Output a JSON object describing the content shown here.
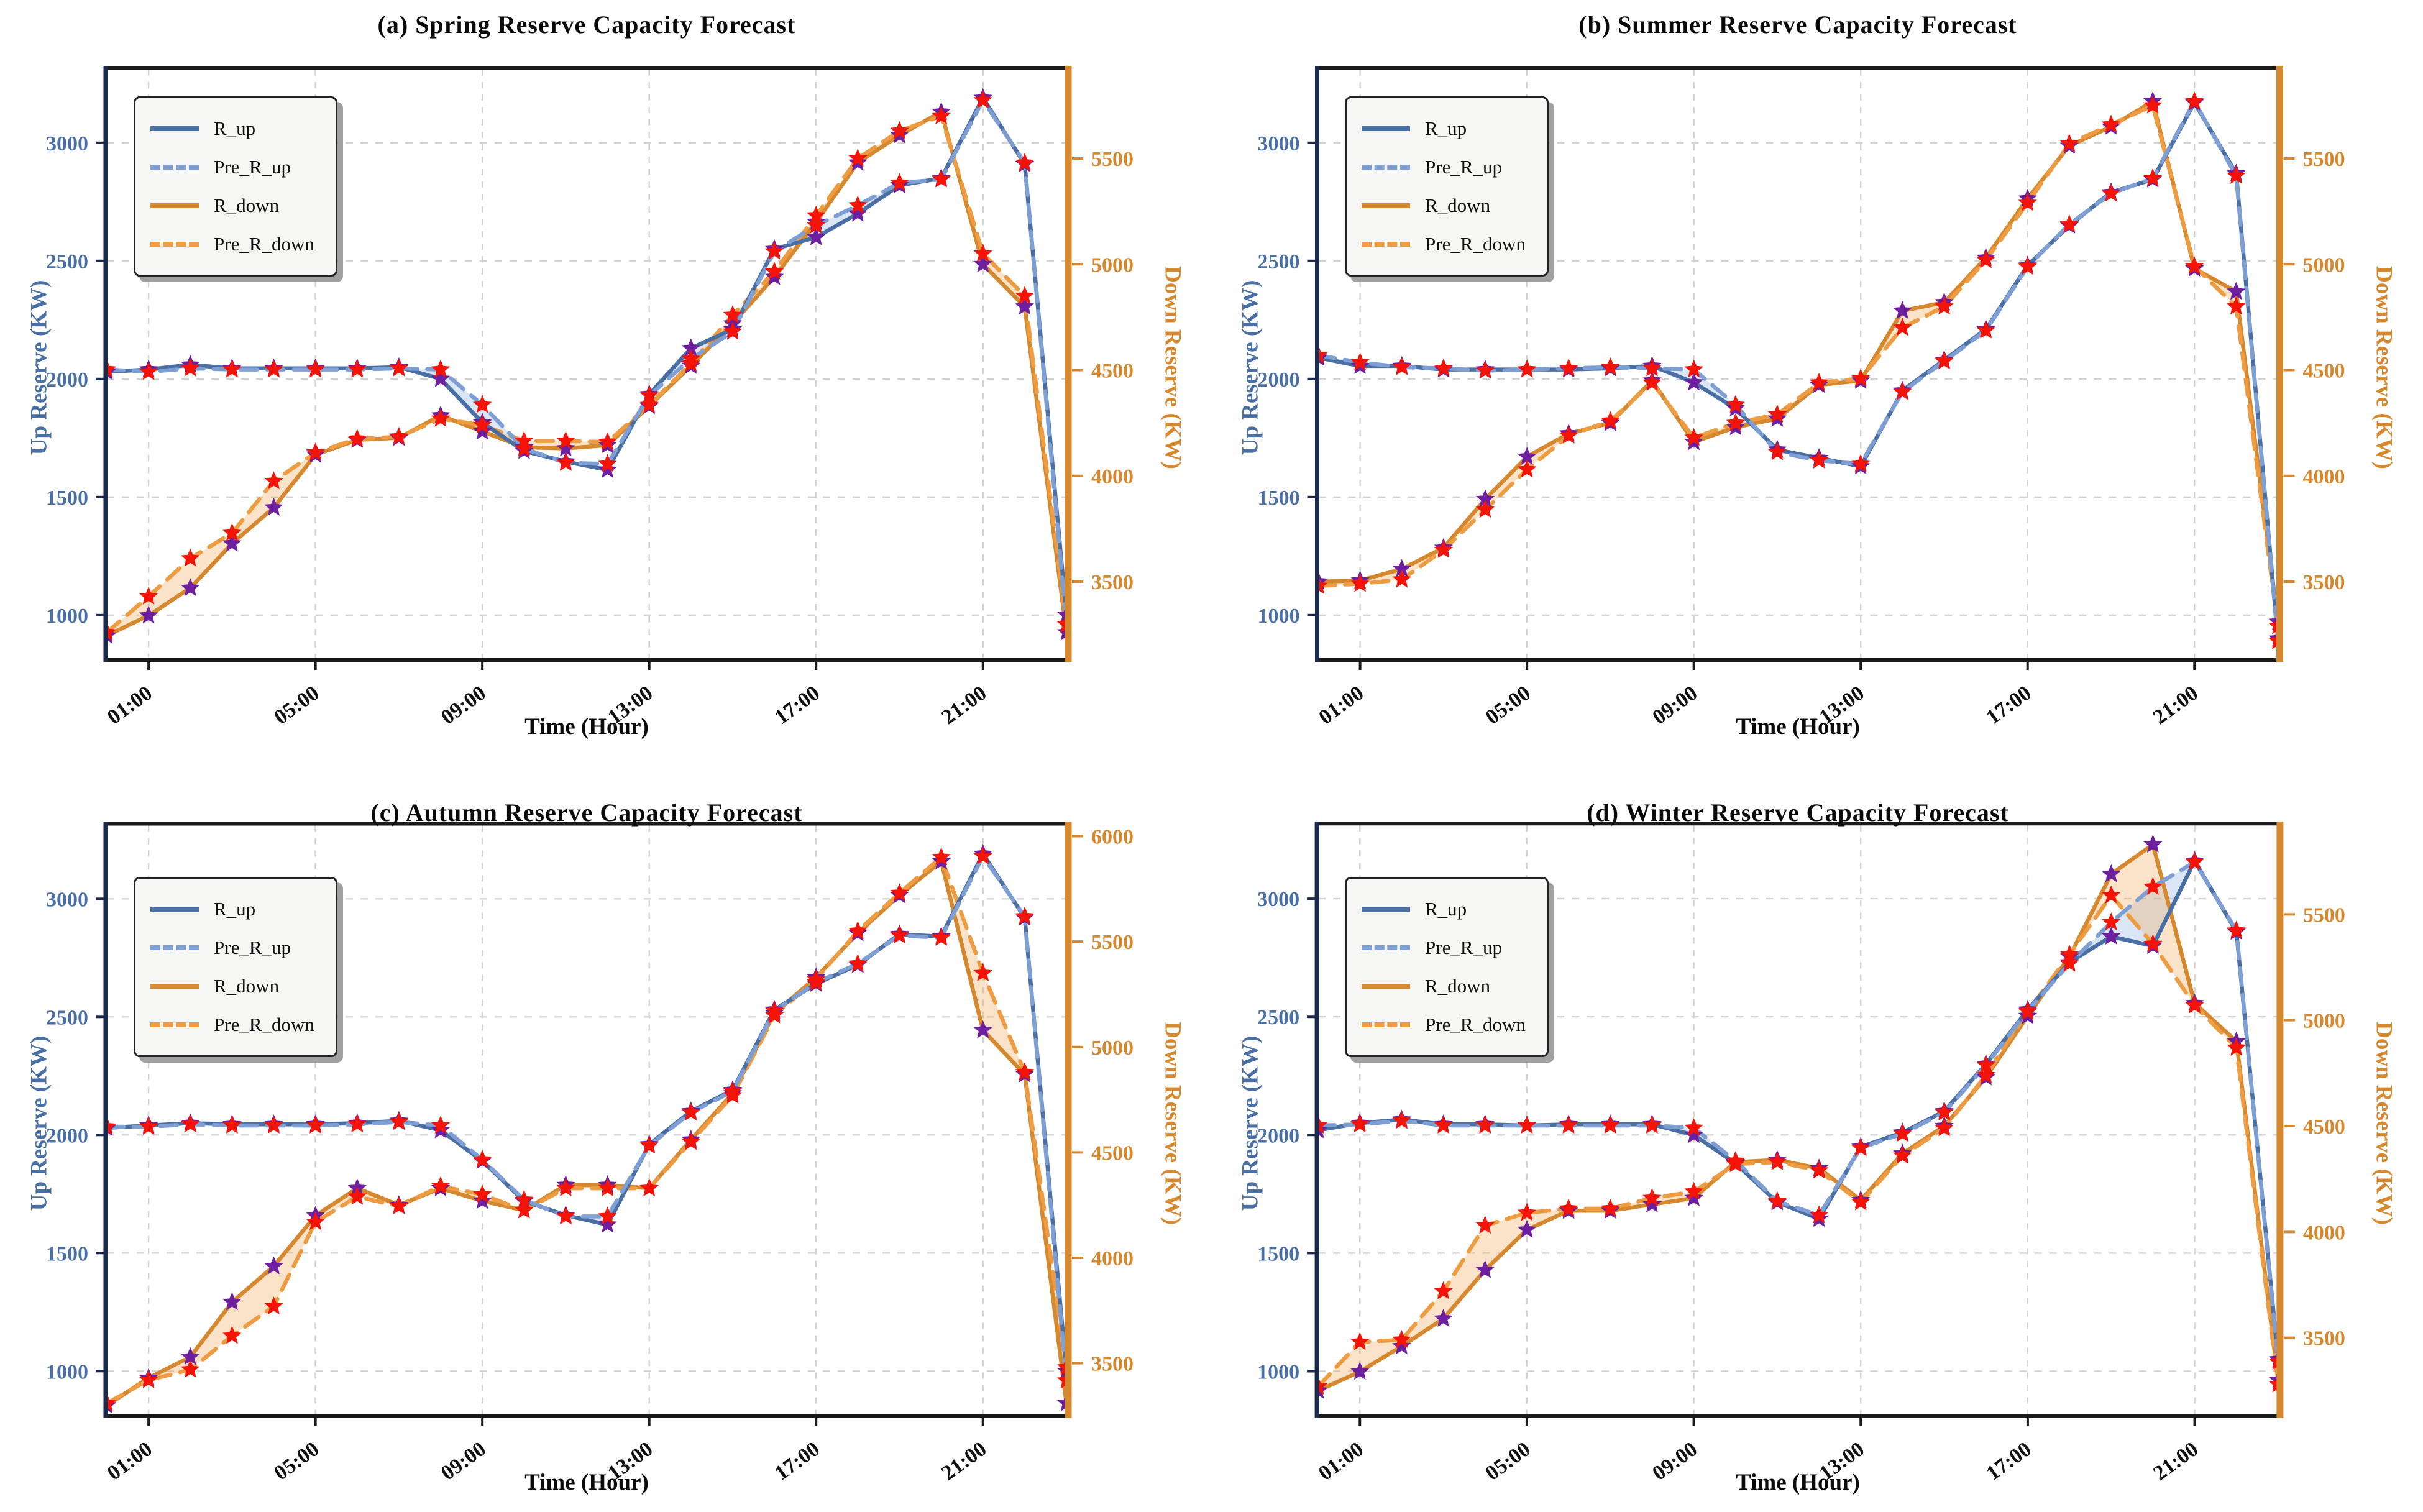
{
  "shared": {
    "xlabel": "Time (Hour)",
    "ylabel_left": "Up Reserve (KW)",
    "ylabel_right": "Down Reserve (KW)",
    "legend": [
      "R_up",
      "Pre_R_up",
      "R_down",
      "Pre_R_down"
    ],
    "x_tick_labels": [
      "01:00",
      "05:00",
      "09:00",
      "13:00",
      "17:00",
      "21:00"
    ],
    "x_tick_hours": [
      1,
      5,
      9,
      13,
      17,
      21
    ],
    "left_ticks": [
      1000,
      1500,
      2000,
      2500,
      3000
    ],
    "left_range": [
      810,
      3310
    ],
    "colors": {
      "r_up": "#4a6fa5",
      "pre_r_up": "#7e9fd4",
      "r_down": "#d6882e",
      "pre_r_down": "#ee9c42",
      "marker_actual": "#6d1fa0",
      "marker_pred": "#f31407",
      "fill_up": "rgba(150,180,225,0.35)",
      "fill_down": "rgba(240,175,100,0.35)",
      "grid": "#d2d2d2",
      "spine_dark": "#1b2a4a",
      "spine_black": "#1a1a1a",
      "left_tick_color": "#4a6fa5",
      "right_tick_color": "#d6882e"
    }
  },
  "chart_data": [
    {
      "id": "spring",
      "type": "line",
      "title": "(a) Spring Reserve Capacity Forecast",
      "xlabel": "Time (Hour)",
      "ylabel_left": "Up Reserve (KW)",
      "ylabel_right": "Down Reserve (KW)",
      "x_hours": [
        0,
        1,
        2,
        3,
        4,
        5,
        6,
        7,
        8,
        9,
        10,
        11,
        12,
        13,
        14,
        15,
        16,
        17,
        18,
        19,
        20,
        21,
        22,
        23
      ],
      "right_ticks": [
        3500,
        4000,
        4500,
        5000,
        5500
      ],
      "right_range": [
        3130,
        5920
      ],
      "series": [
        {
          "name": "R_up",
          "axis": "left",
          "style": "solid",
          "color": "#4a6fa5",
          "marker": "star",
          "marker_color": "#6d1fa0",
          "values": [
            2030,
            2040,
            2060,
            2045,
            2045,
            2045,
            2045,
            2050,
            2000,
            1815,
            1695,
            1650,
            1615,
            1935,
            2130,
            2210,
            2550,
            2600,
            2700,
            2820,
            2850,
            3190,
            2910,
            1000
          ]
        },
        {
          "name": "Pre_R_up",
          "axis": "left",
          "style": "dashed",
          "color": "#7e9fd4",
          "marker": "star",
          "marker_color": "#f31407",
          "values": [
            2040,
            2030,
            2045,
            2040,
            2040,
            2040,
            2040,
            2045,
            2040,
            1890,
            1705,
            1645,
            1640,
            1930,
            2085,
            2200,
            2540,
            2650,
            2735,
            2830,
            2845,
            3180,
            2915,
            960
          ]
        },
        {
          "name": "R_down",
          "axis": "right",
          "style": "solid",
          "color": "#d6882e",
          "marker": "star",
          "marker_color": "#6d1fa0",
          "values": [
            3245,
            3340,
            3470,
            3680,
            3850,
            4100,
            4170,
            4180,
            4285,
            4210,
            4135,
            4130,
            4145,
            4330,
            4520,
            4720,
            4940,
            5200,
            5480,
            5610,
            5720,
            5000,
            4800,
            3260
          ]
        },
        {
          "name": "Pre_R_down",
          "axis": "right",
          "style": "dashed",
          "color": "#ee9c42",
          "marker": "star",
          "marker_color": "#f31407",
          "values": [
            3260,
            3430,
            3610,
            3730,
            3975,
            4110,
            4175,
            4185,
            4270,
            4240,
            4165,
            4165,
            4160,
            4335,
            4530,
            4760,
            4965,
            5230,
            5500,
            5630,
            5700,
            5050,
            4850,
            3300
          ]
        }
      ]
    },
    {
      "id": "summer",
      "type": "line",
      "title": "(b) Summer Reserve Capacity Forecast",
      "xlabel": "Time (Hour)",
      "ylabel_left": "Up Reserve (KW)",
      "ylabel_right": "Down Reserve (KW)",
      "x_hours": [
        0,
        1,
        2,
        3,
        4,
        5,
        6,
        7,
        8,
        9,
        10,
        11,
        12,
        13,
        14,
        15,
        16,
        17,
        18,
        19,
        20,
        21,
        22,
        23
      ],
      "right_ticks": [
        3500,
        4000,
        4500,
        5000,
        5500
      ],
      "right_range": [
        3130,
        5920
      ],
      "series": [
        {
          "name": "R_up",
          "axis": "left",
          "style": "solid",
          "color": "#4a6fa5",
          "marker": "star",
          "marker_color": "#6d1fa0",
          "values": [
            2090,
            2055,
            2055,
            2040,
            2040,
            2040,
            2040,
            2045,
            2055,
            1985,
            1875,
            1700,
            1665,
            1630,
            1950,
            2080,
            2210,
            2480,
            2650,
            2790,
            2845,
            3170,
            2870,
            900
          ]
        },
        {
          "name": "Pre_R_up",
          "axis": "left",
          "style": "dashed",
          "color": "#7e9fd4",
          "marker": "star",
          "marker_color": "#f31407",
          "values": [
            2100,
            2070,
            2050,
            2045,
            2035,
            2040,
            2045,
            2050,
            2045,
            2040,
            1890,
            1690,
            1655,
            1640,
            1945,
            2075,
            2205,
            2475,
            2655,
            2785,
            2850,
            3175,
            2860,
            890
          ]
        },
        {
          "name": "R_down",
          "axis": "right",
          "style": "solid",
          "color": "#d6882e",
          "marker": "star",
          "marker_color": "#6d1fa0",
          "values": [
            3500,
            3505,
            3560,
            3660,
            3890,
            4090,
            4200,
            4250,
            4450,
            4160,
            4230,
            4270,
            4430,
            4450,
            4780,
            4820,
            5030,
            5310,
            5560,
            5650,
            5770,
            4980,
            4870,
            3310
          ]
        },
        {
          "name": "Pre_R_down",
          "axis": "right",
          "style": "dashed",
          "color": "#ee9c42",
          "marker": "star",
          "marker_color": "#f31407",
          "values": [
            3480,
            3490,
            3510,
            3650,
            3840,
            4030,
            4190,
            4260,
            4440,
            4180,
            4250,
            4290,
            4440,
            4460,
            4700,
            4800,
            5020,
            5290,
            5570,
            5660,
            5750,
            4990,
            4800,
            3290
          ]
        }
      ]
    },
    {
      "id": "autumn",
      "type": "line",
      "title": "(c) Autumn Reserve Capacity Forecast",
      "xlabel": "Time (Hour)",
      "ylabel_left": "Up Reserve (KW)",
      "ylabel_right": "Down Reserve (KW)",
      "x_hours": [
        0,
        1,
        2,
        3,
        4,
        5,
        6,
        7,
        8,
        9,
        10,
        11,
        12,
        13,
        14,
        15,
        16,
        17,
        18,
        19,
        20,
        21,
        22,
        23
      ],
      "right_ticks": [
        3500,
        4000,
        4500,
        5000,
        5500,
        6000
      ],
      "right_range": [
        3250,
        6050
      ],
      "series": [
        {
          "name": "R_up",
          "axis": "left",
          "style": "solid",
          "color": "#4a6fa5",
          "marker": "star",
          "marker_color": "#6d1fa0",
          "values": [
            2030,
            2040,
            2050,
            2045,
            2045,
            2045,
            2050,
            2060,
            2020,
            1890,
            1720,
            1660,
            1620,
            1960,
            2100,
            2190,
            2530,
            2640,
            2720,
            2850,
            2840,
            3190,
            2920,
            1000
          ]
        },
        {
          "name": "Pre_R_up",
          "axis": "left",
          "style": "dashed",
          "color": "#7e9fd4",
          "marker": "star",
          "marker_color": "#f31407",
          "values": [
            2035,
            2035,
            2045,
            2040,
            2040,
            2040,
            2045,
            2055,
            2040,
            1895,
            1725,
            1655,
            1655,
            1955,
            2095,
            2185,
            2525,
            2645,
            2725,
            2845,
            2835,
            3180,
            2925,
            960
          ]
        },
        {
          "name": "R_down",
          "axis": "right",
          "style": "solid",
          "color": "#d6882e",
          "marker": "star",
          "marker_color": "#6d1fa0",
          "values": [
            3300,
            3430,
            3530,
            3790,
            3960,
            4200,
            4330,
            4250,
            4330,
            4270,
            4225,
            4345,
            4345,
            4330,
            4560,
            4780,
            5160,
            5330,
            5540,
            5720,
            5880,
            5080,
            4870,
            3310
          ]
        },
        {
          "name": "Pre_R_down",
          "axis": "right",
          "style": "dashed",
          "color": "#ee9c42",
          "marker": "star",
          "marker_color": "#f31407",
          "values": [
            3310,
            3420,
            3470,
            3630,
            3770,
            4170,
            4290,
            4245,
            4340,
            4300,
            4225,
            4330,
            4330,
            4330,
            4550,
            4770,
            5150,
            5320,
            5550,
            5730,
            5900,
            5350,
            4880,
            3480
          ]
        }
      ]
    },
    {
      "id": "winter",
      "type": "line",
      "title": "(d) Winter Reserve Capacity Forecast",
      "xlabel": "Time (Hour)",
      "ylabel_left": "Up Reserve (KW)",
      "ylabel_right": "Down Reserve (KW)",
      "x_hours": [
        0,
        1,
        2,
        3,
        4,
        5,
        6,
        7,
        8,
        9,
        10,
        11,
        12,
        13,
        14,
        15,
        16,
        17,
        18,
        19,
        20,
        21,
        22,
        23
      ],
      "right_ticks": [
        3500,
        4000,
        4500,
        5000,
        5500
      ],
      "right_range": [
        3130,
        5920
      ],
      "series": [
        {
          "name": "R_up",
          "axis": "left",
          "style": "solid",
          "color": "#4a6fa5",
          "marker": "star",
          "marker_color": "#6d1fa0",
          "values": [
            2020,
            2050,
            2065,
            2045,
            2045,
            2040,
            2045,
            2045,
            2045,
            2000,
            1880,
            1715,
            1645,
            1950,
            2010,
            2100,
            2300,
            2530,
            2730,
            2840,
            2800,
            3160,
            2860,
            1050
          ]
        },
        {
          "name": "Pre_R_up",
          "axis": "left",
          "style": "dashed",
          "color": "#7e9fd4",
          "marker": "star",
          "marker_color": "#f31407",
          "values": [
            2040,
            2045,
            2060,
            2040,
            2040,
            2040,
            2040,
            2040,
            2040,
            2030,
            1890,
            1720,
            1660,
            1945,
            2005,
            2095,
            2295,
            2525,
            2725,
            2900,
            3050,
            3155,
            2865,
            1040
          ]
        },
        {
          "name": "R_down",
          "axis": "right",
          "style": "solid",
          "color": "#d6882e",
          "marker": "star",
          "marker_color": "#6d1fa0",
          "values": [
            3250,
            3340,
            3460,
            3590,
            3820,
            4010,
            4100,
            4100,
            4130,
            4160,
            4330,
            4340,
            4300,
            4150,
            4370,
            4500,
            4730,
            5020,
            5300,
            5690,
            5830,
            5080,
            4900,
            3300
          ]
        },
        {
          "name": "Pre_R_down",
          "axis": "right",
          "style": "dashed",
          "color": "#ee9c42",
          "marker": "star",
          "marker_color": "#f31407",
          "values": [
            3270,
            3480,
            3490,
            3720,
            4030,
            4090,
            4110,
            4110,
            4160,
            4190,
            4320,
            4330,
            4290,
            4140,
            4360,
            4490,
            4740,
            5040,
            5310,
            5590,
            5360,
            5070,
            4870,
            3280
          ]
        }
      ]
    }
  ]
}
